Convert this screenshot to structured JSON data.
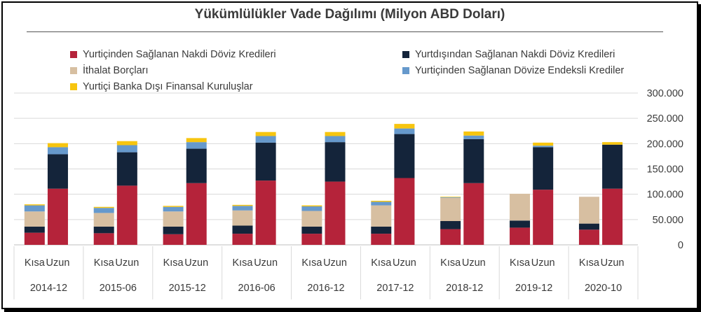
{
  "chart_data": {
    "type": "bar",
    "stacked": true,
    "title": "Yükümlülükler Vade Dağılımı (Milyon ABD Doları)",
    "grid": true,
    "legend_position": "top",
    "y_axis_side": "right",
    "ylim": [
      0,
      300000
    ],
    "yticks": [
      "0",
      "50.000",
      "100.000",
      "150.000",
      "200.000",
      "250.000",
      "300.000"
    ],
    "groups": [
      "2014-12",
      "2015-06",
      "2015-12",
      "2016-06",
      "2016-12",
      "2017-12",
      "2018-12",
      "2019-12",
      "2020-10"
    ],
    "sub_categories": [
      "Kısa",
      "Uzun"
    ],
    "series": [
      {
        "name": "Yurtiçinden Sağlanan Nakdi Döviz Kredileri",
        "color": "#b5233a",
        "kisa": [
          24000,
          23000,
          21000,
          22000,
          22000,
          22000,
          31000,
          34000,
          30000
        ],
        "uzun": [
          111000,
          117000,
          122000,
          127000,
          125000,
          132000,
          122000,
          109000,
          111000
        ]
      },
      {
        "name": "Yurtdışından Sağlanan Nakdi Döviz Kredileri",
        "color": "#14243a",
        "kisa": [
          12000,
          13000,
          15000,
          16000,
          14000,
          14000,
          16000,
          14000,
          12000
        ],
        "uzun": [
          68000,
          66000,
          68000,
          75000,
          78000,
          87000,
          87000,
          84000,
          87000
        ]
      },
      {
        "name": "İthalat Borçları",
        "color": "#d7bfa1",
        "kisa": [
          30000,
          27000,
          30000,
          30000,
          31000,
          42000,
          46000,
          53000,
          53000
        ],
        "uzun": [
          0,
          0,
          0,
          0,
          0,
          0,
          0,
          0,
          0
        ]
      },
      {
        "name": "Yurtiçinden Sağlanan Dövize Endeksli Krediler",
        "color": "#6699cc",
        "kisa": [
          12000,
          10000,
          9000,
          9000,
          9000,
          7000,
          1000,
          0,
          0
        ],
        "uzun": [
          14000,
          14000,
          13000,
          13000,
          12000,
          11000,
          7000,
          3000,
          0
        ]
      },
      {
        "name": "Yurtiçi Banka Dışı Finansal Kuruluşlar",
        "color": "#f7c50f",
        "kisa": [
          2000,
          2000,
          2000,
          2000,
          2000,
          2000,
          1000,
          0,
          0
        ],
        "uzun": [
          8000,
          8000,
          8000,
          8000,
          8000,
          9000,
          8000,
          6000,
          5000
        ]
      }
    ]
  }
}
